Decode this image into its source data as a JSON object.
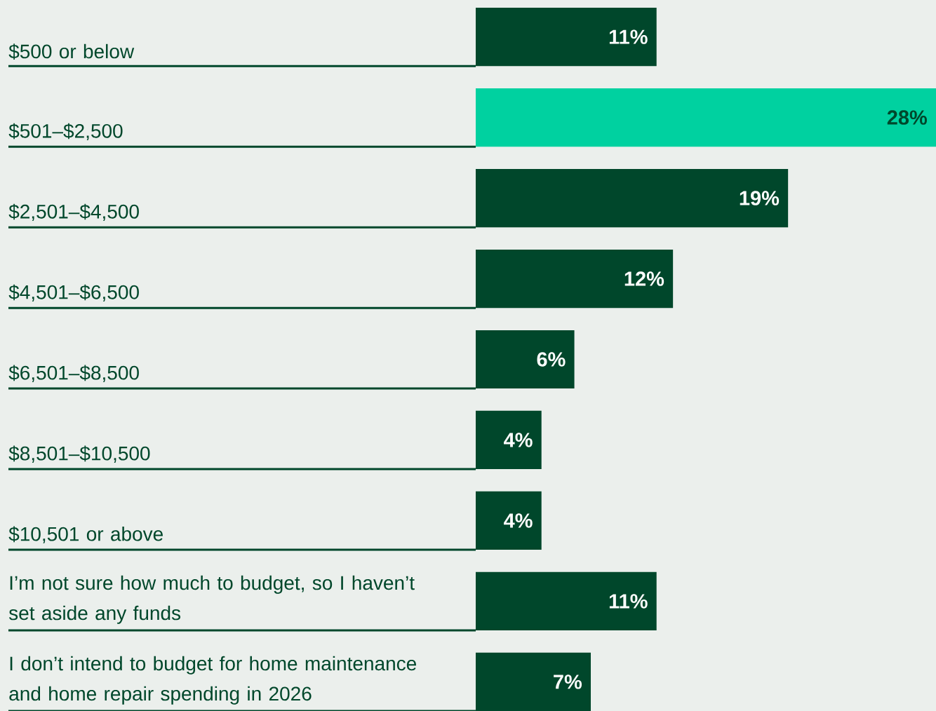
{
  "chart_data": {
    "type": "bar",
    "orientation": "horizontal",
    "categories": [
      "$500 or below",
      "$501–$2,500",
      "$2,501–$4,500",
      "$4,501–$6,500",
      "$6,501–$8,500",
      "$8,501–$10,500",
      "$10,501 or above",
      "I’m not sure how much to budget, so I haven’t set aside any funds",
      "I don’t intend to budget for home maintenance and home repair spending in 2026"
    ],
    "values": [
      11,
      28,
      19,
      12,
      6,
      4,
      4,
      11,
      7
    ],
    "colors": [
      "#00472b",
      "#00d1a0",
      "#00472b",
      "#00472b",
      "#00472b",
      "#00472b",
      "#00472b",
      "#00472b",
      "#00472b"
    ],
    "value_labels": [
      "11%",
      "28%",
      "19%",
      "12%",
      "6%",
      "4%",
      "4%",
      "11%",
      "7%"
    ]
  }
}
